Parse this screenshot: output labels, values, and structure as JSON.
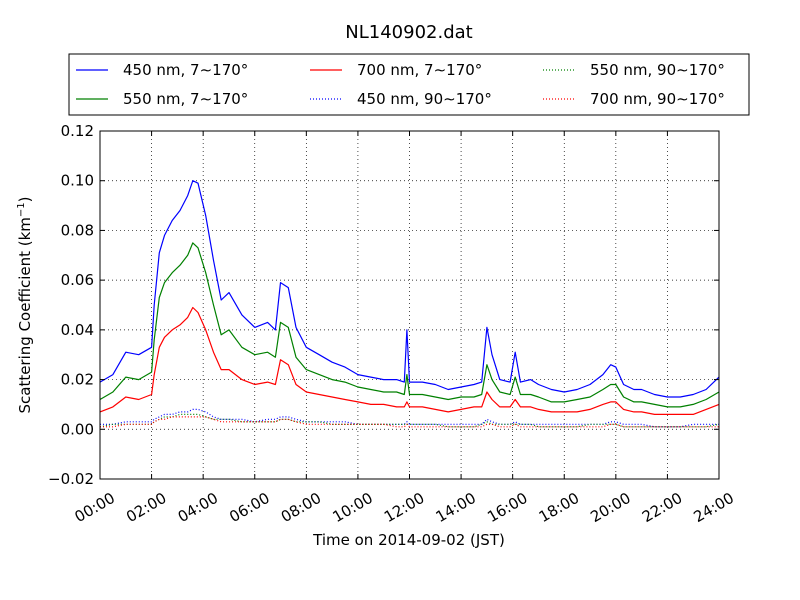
{
  "chart_data": {
    "type": "line",
    "title": "NL140902.dat",
    "xlabel": "Time on 2014-09-02 (JST)",
    "ylabel": "Scattering Coefficient (km",
    "ylabel_sup": "−1",
    "ylabel_close": ")",
    "xlim": [
      0,
      24
    ],
    "ylim": [
      -0.02,
      0.12
    ],
    "x_ticks": [
      0,
      2,
      4,
      6,
      8,
      10,
      12,
      14,
      16,
      18,
      20,
      22,
      24
    ],
    "x_tick_labels": [
      "00:00",
      "02:00",
      "04:00",
      "06:00",
      "08:00",
      "10:00",
      "12:00",
      "14:00",
      "16:00",
      "18:00",
      "20:00",
      "22:00",
      "24:00"
    ],
    "y_ticks": [
      -0.02,
      0.0,
      0.02,
      0.04,
      0.06,
      0.08,
      0.1,
      0.12
    ],
    "y_tick_labels": [
      "−0.02",
      "0.00",
      "0.02",
      "0.04",
      "0.06",
      "0.08",
      "0.10",
      "0.12"
    ],
    "grid": true,
    "legend_position": "top",
    "x": [
      0,
      0.5,
      1,
      1.5,
      2,
      2.1,
      2.3,
      2.5,
      2.8,
      3.1,
      3.4,
      3.6,
      3.8,
      4.1,
      4.4,
      4.7,
      5,
      5.5,
      6,
      6.5,
      6.8,
      7,
      7.3,
      7.6,
      8,
      8.5,
      9,
      9.5,
      10,
      10.5,
      11,
      11.5,
      11.8,
      11.9,
      12,
      12.5,
      13,
      13.5,
      14,
      14.5,
      14.8,
      15,
      15.2,
      15.5,
      15.9,
      16.1,
      16.3,
      16.7,
      17,
      17.5,
      18,
      18.5,
      19,
      19.5,
      19.8,
      20,
      20.3,
      20.7,
      21,
      21.5,
      22,
      22.5,
      23,
      23.5,
      24
    ],
    "series": [
      {
        "name": "450 nm, 7∼170°",
        "color": "#0000ff",
        "style": "solid",
        "values": [
          0.019,
          0.022,
          0.031,
          0.03,
          0.033,
          0.05,
          0.071,
          0.078,
          0.084,
          0.088,
          0.094,
          0.1,
          0.099,
          0.086,
          0.068,
          0.052,
          0.055,
          0.046,
          0.041,
          0.043,
          0.04,
          0.059,
          0.057,
          0.041,
          0.033,
          0.03,
          0.027,
          0.025,
          0.022,
          0.021,
          0.02,
          0.02,
          0.019,
          0.04,
          0.019,
          0.019,
          0.018,
          0.016,
          0.017,
          0.018,
          0.019,
          0.041,
          0.03,
          0.02,
          0.019,
          0.031,
          0.019,
          0.02,
          0.018,
          0.016,
          0.015,
          0.016,
          0.018,
          0.022,
          0.026,
          0.025,
          0.018,
          0.016,
          0.016,
          0.014,
          0.013,
          0.013,
          0.014,
          0.016,
          0.021
        ]
      },
      {
        "name": "550 nm, 7∼170°",
        "color": "#008000",
        "style": "solid",
        "values": [
          0.012,
          0.015,
          0.021,
          0.02,
          0.023,
          0.036,
          0.053,
          0.059,
          0.063,
          0.066,
          0.07,
          0.075,
          0.073,
          0.063,
          0.05,
          0.038,
          0.04,
          0.033,
          0.03,
          0.031,
          0.029,
          0.043,
          0.041,
          0.029,
          0.024,
          0.022,
          0.02,
          0.019,
          0.017,
          0.016,
          0.015,
          0.015,
          0.014,
          0.022,
          0.014,
          0.014,
          0.013,
          0.012,
          0.013,
          0.013,
          0.014,
          0.026,
          0.02,
          0.015,
          0.014,
          0.021,
          0.014,
          0.014,
          0.013,
          0.011,
          0.011,
          0.012,
          0.013,
          0.016,
          0.018,
          0.018,
          0.013,
          0.011,
          0.011,
          0.01,
          0.009,
          0.009,
          0.01,
          0.012,
          0.015
        ]
      },
      {
        "name": "700 nm, 7∼170°",
        "color": "#ff0000",
        "style": "solid",
        "values": [
          0.007,
          0.009,
          0.013,
          0.012,
          0.014,
          0.022,
          0.033,
          0.037,
          0.04,
          0.042,
          0.045,
          0.049,
          0.047,
          0.04,
          0.031,
          0.024,
          0.024,
          0.02,
          0.018,
          0.019,
          0.018,
          0.028,
          0.026,
          0.018,
          0.015,
          0.014,
          0.013,
          0.012,
          0.011,
          0.01,
          0.01,
          0.009,
          0.009,
          0.011,
          0.009,
          0.009,
          0.008,
          0.007,
          0.008,
          0.009,
          0.009,
          0.015,
          0.012,
          0.009,
          0.009,
          0.012,
          0.009,
          0.009,
          0.008,
          0.007,
          0.007,
          0.007,
          0.008,
          0.01,
          0.011,
          0.011,
          0.008,
          0.007,
          0.007,
          0.006,
          0.006,
          0.006,
          0.006,
          0.008,
          0.01
        ]
      },
      {
        "name": "450 nm, 90∼170°",
        "color": "#0000ff",
        "style": "dotted",
        "values": [
          0.002,
          0.002,
          0.003,
          0.003,
          0.003,
          0.004,
          0.005,
          0.006,
          0.006,
          0.007,
          0.007,
          0.008,
          0.008,
          0.007,
          0.005,
          0.004,
          0.004,
          0.004,
          0.003,
          0.004,
          0.004,
          0.005,
          0.005,
          0.004,
          0.003,
          0.003,
          0.003,
          0.003,
          0.002,
          0.002,
          0.002,
          0.002,
          0.002,
          0.003,
          0.002,
          0.002,
          0.002,
          0.002,
          0.002,
          0.002,
          0.002,
          0.004,
          0.003,
          0.002,
          0.002,
          0.003,
          0.002,
          0.002,
          0.002,
          0.002,
          0.002,
          0.002,
          0.002,
          0.002,
          0.003,
          0.003,
          0.002,
          0.002,
          0.002,
          0.001,
          0.001,
          0.001,
          0.002,
          0.002,
          0.002
        ]
      },
      {
        "name": "550 nm, 90∼170°",
        "color": "#008000",
        "style": "dotted",
        "values": [
          0.001,
          0.002,
          0.002,
          0.002,
          0.002,
          0.003,
          0.004,
          0.005,
          0.005,
          0.006,
          0.006,
          0.006,
          0.006,
          0.005,
          0.004,
          0.004,
          0.004,
          0.003,
          0.003,
          0.003,
          0.003,
          0.004,
          0.004,
          0.003,
          0.003,
          0.003,
          0.002,
          0.002,
          0.002,
          0.002,
          0.002,
          0.002,
          0.002,
          0.002,
          0.002,
          0.002,
          0.002,
          0.001,
          0.001,
          0.001,
          0.002,
          0.003,
          0.002,
          0.002,
          0.002,
          0.002,
          0.002,
          0.002,
          0.001,
          0.001,
          0.001,
          0.001,
          0.002,
          0.002,
          0.002,
          0.002,
          0.001,
          0.001,
          0.001,
          0.001,
          0.001,
          0.001,
          0.001,
          0.001,
          0.002
        ]
      },
      {
        "name": "700 nm, 90∼170°",
        "color": "#ff0000",
        "style": "dotted",
        "values": [
          0.001,
          0.001,
          0.002,
          0.002,
          0.002,
          0.003,
          0.004,
          0.004,
          0.005,
          0.005,
          0.005,
          0.005,
          0.005,
          0.005,
          0.004,
          0.003,
          0.003,
          0.003,
          0.003,
          0.003,
          0.003,
          0.004,
          0.004,
          0.003,
          0.002,
          0.002,
          0.002,
          0.002,
          0.002,
          0.002,
          0.002,
          0.001,
          0.001,
          0.002,
          0.001,
          0.001,
          0.001,
          0.001,
          0.001,
          0.001,
          0.001,
          0.002,
          0.002,
          0.001,
          0.001,
          0.002,
          0.001,
          0.001,
          0.001,
          0.001,
          0.001,
          0.001,
          0.001,
          0.001,
          0.002,
          0.002,
          0.001,
          0.001,
          0.001,
          0.001,
          0.001,
          0.001,
          0.001,
          0.001,
          0.001
        ]
      }
    ],
    "legend_order": [
      0,
      2,
      4,
      1,
      3,
      5
    ]
  }
}
